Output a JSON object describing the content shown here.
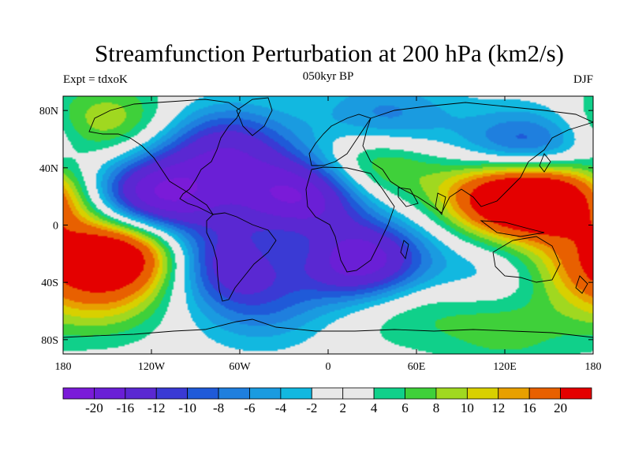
{
  "title": "Streamfunction Perturbation at 200 hPa (km2/s)",
  "left_string": "Expt = tdxoK",
  "center_string": "050kyr BP",
  "right_string": "DJF",
  "x_ticks": [
    "180",
    "120W",
    "60W",
    "0",
    "60E",
    "120E",
    "180"
  ],
  "y_ticks": [
    "80N",
    "40N",
    "0",
    "40S",
    "80S"
  ],
  "labelbar": {
    "labels": [
      "-20",
      "-16",
      "-12",
      "-10",
      "-8",
      "-6",
      "-4",
      "-2",
      "2",
      "4",
      "6",
      "8",
      "10",
      "12",
      "16",
      "20"
    ],
    "colors": [
      "#7a1bd8",
      "#6a1fd6",
      "#5a28d2",
      "#3a3ad4",
      "#1f5ad8",
      "#1f7fde",
      "#1a9be0",
      "#12b8e0",
      "#e8e8e8",
      "#10d08a",
      "#3fd03a",
      "#a0d820",
      "#d8d000",
      "#e8a000",
      "#e86000",
      "#e40000"
    ]
  },
  "map_data": {
    "projection": "cylindrical-equidistant",
    "lon_range": [
      -180,
      180
    ],
    "lat_range": [
      -90,
      90
    ],
    "season": "DJF",
    "background_color": "#e8e8e8",
    "blobs": [
      {
        "lon": -115,
        "lat": 20,
        "value": -21
      },
      {
        "lon": -140,
        "lat": -20,
        "value": 21
      },
      {
        "lon": -20,
        "lat": 20,
        "value": -21
      },
      {
        "lon": 20,
        "lat": -25,
        "value": -21
      },
      {
        "lon": 120,
        "lat": 22,
        "value": 18
      },
      {
        "lon": 150,
        "lat": 20,
        "value": 20
      },
      {
        "lon": 30,
        "lat": 45,
        "value": 11
      },
      {
        "lon": -70,
        "lat": 55,
        "value": -13
      },
      {
        "lon": -150,
        "lat": 72,
        "value": 8
      },
      {
        "lon": 135,
        "lat": 48,
        "value": -16
      },
      {
        "lon": -65,
        "lat": -25,
        "value": -16
      },
      {
        "lon": -25,
        "lat": -15,
        "value": 8
      },
      {
        "lon": 45,
        "lat": 70,
        "value": -6
      },
      {
        "lon": 110,
        "lat": -40,
        "value": -6
      },
      {
        "lon": 100,
        "lat": -55,
        "value": 4
      },
      {
        "lon": 125,
        "lat": -75,
        "value": 4
      },
      {
        "lon": 170,
        "lat": -30,
        "value": 8
      },
      {
        "lon": -155,
        "lat": -55,
        "value": 6
      },
      {
        "lon": -45,
        "lat": -58,
        "value": -6
      },
      {
        "lon": 45,
        "lat": -58,
        "value": 4
      },
      {
        "lon": 25,
        "lat": 70,
        "value": -4
      }
    ]
  }
}
